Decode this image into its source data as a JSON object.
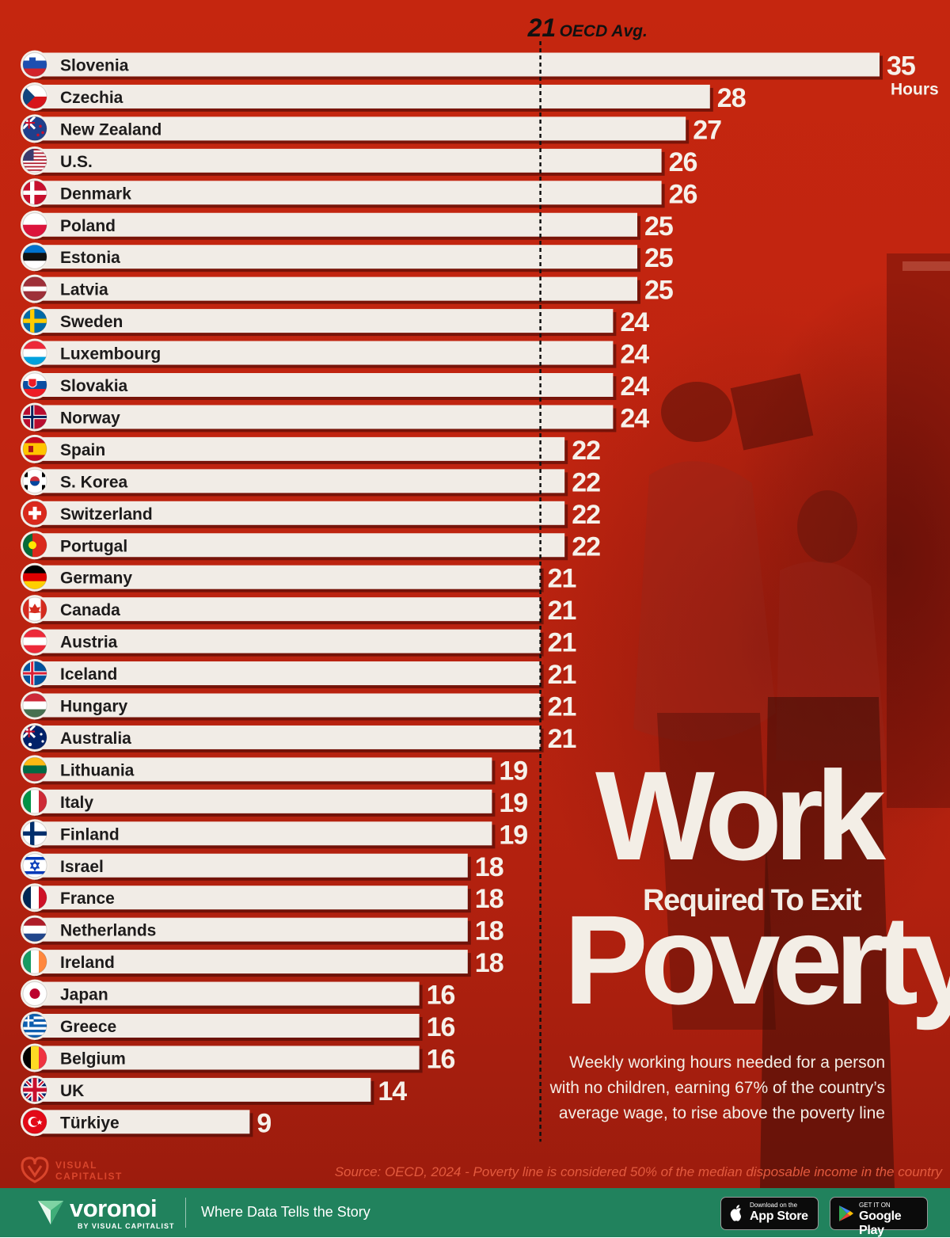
{
  "chart_data": {
    "type": "bar",
    "orientation": "horizontal",
    "categories": [
      "Slovenia",
      "Czechia",
      "New Zealand",
      "U.S.",
      "Denmark",
      "Poland",
      "Estonia",
      "Latvia",
      "Sweden",
      "Luxembourg",
      "Slovakia",
      "Norway",
      "Spain",
      "S. Korea",
      "Switzerland",
      "Portugal",
      "Germany",
      "Canada",
      "Austria",
      "Iceland",
      "Hungary",
      "Australia",
      "Lithuania",
      "Italy",
      "Finland",
      "Israel",
      "France",
      "Netherlands",
      "Ireland",
      "Japan",
      "Greece",
      "Belgium",
      "UK",
      "Türkiye"
    ],
    "values": [
      35,
      28,
      27,
      26,
      26,
      25,
      25,
      25,
      24,
      24,
      24,
      24,
      22,
      22,
      22,
      22,
      21,
      21,
      21,
      21,
      21,
      21,
      19,
      19,
      19,
      18,
      18,
      18,
      18,
      16,
      16,
      16,
      14,
      9
    ],
    "unit_label": "Hours",
    "reference_line": {
      "value": 21,
      "value_label": "21",
      "label": "OECD Avg."
    },
    "xlim": [
      0,
      35
    ],
    "bar_color": "#f1ece6",
    "flags": [
      "slovenia",
      "czechia",
      "new-zealand",
      "us",
      "denmark",
      "poland",
      "estonia",
      "latvia",
      "sweden",
      "luxembourg",
      "slovakia",
      "norway",
      "spain",
      "south-korea",
      "switzerland",
      "portugal",
      "germany",
      "canada",
      "austria",
      "iceland",
      "hungary",
      "australia",
      "lithuania",
      "italy",
      "finland",
      "israel",
      "france",
      "netherlands",
      "ireland",
      "japan",
      "greece",
      "belgium",
      "uk",
      "turkiye"
    ]
  },
  "title": {
    "line1": "Work",
    "line2": "Required To Exit",
    "line3": "Poverty"
  },
  "subtitle": "Weekly working hours needed for a person with no children, earning 67% of the country’s average wage, to rise above the poverty line",
  "source": "Source: OECD, 2024 - Poverty line is considered 50% of the median disposable income in the country",
  "brand": {
    "vc_line1": "VISUAL",
    "vc_line2": "CAPITALIST",
    "footer_logo": "voronoi",
    "footer_by": "BY VISUAL CAPITALIST",
    "tagline": "Where Data Tells the Story",
    "appstore_small": "Download on the",
    "appstore_big": "App Store",
    "gplay_small": "GET IT ON",
    "gplay_big": "Google Play"
  },
  "colors": {
    "background": "#c5260f",
    "footer": "#21825d",
    "text_light": "#f3eee6",
    "source_text": "#e35a3e"
  }
}
